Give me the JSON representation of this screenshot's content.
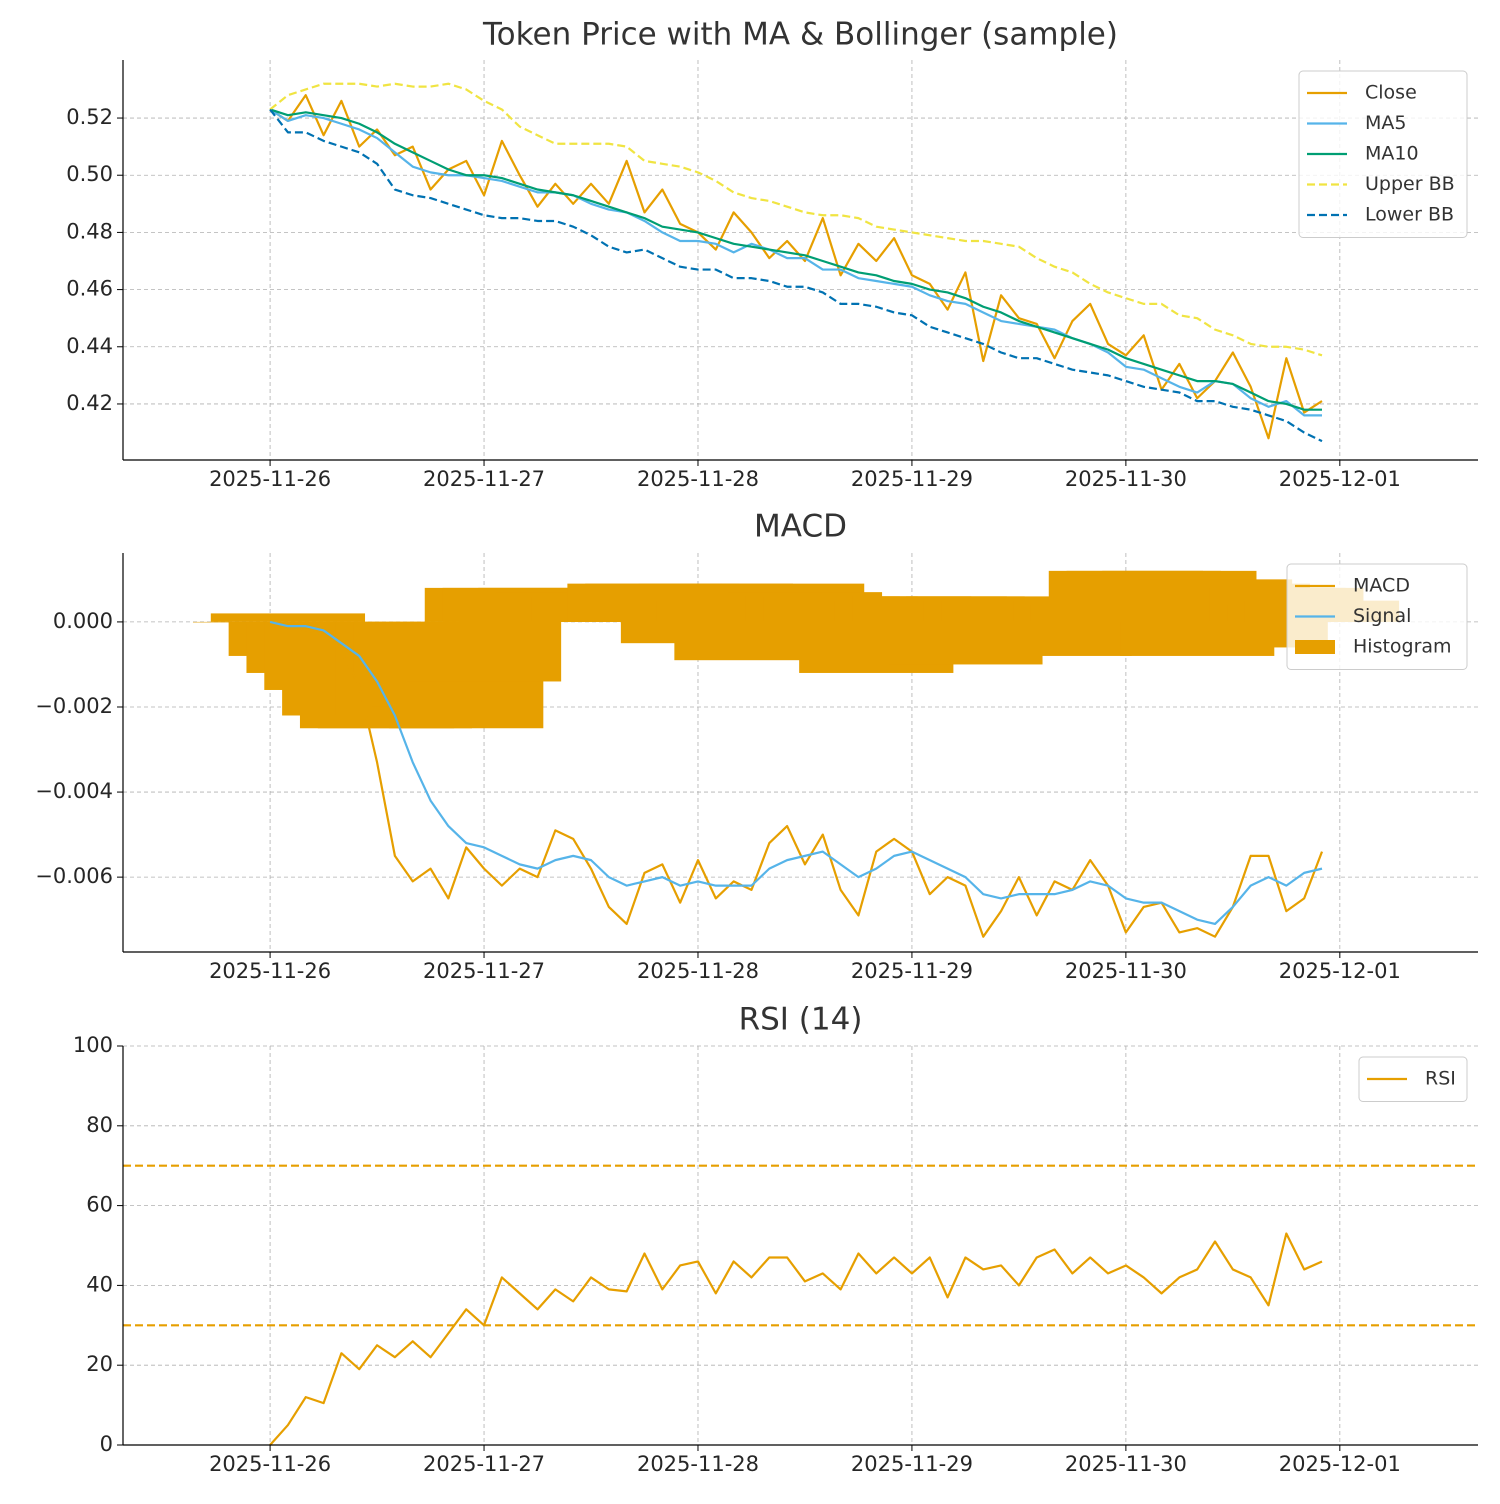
{
  "chart_data": [
    {
      "type": "line",
      "title": "Token Price with MA & Bollinger (sample)",
      "x": [
        0,
        2,
        4,
        6,
        8,
        10,
        12,
        14,
        16,
        18,
        20,
        22,
        24,
        26,
        28,
        30,
        32,
        34,
        36,
        38,
        40,
        42,
        44,
        46,
        48,
        50,
        52,
        54,
        56,
        58,
        60,
        62,
        64,
        66,
        68,
        70,
        72,
        74,
        76,
        78,
        80,
        82,
        84,
        86,
        88,
        90,
        92,
        94,
        96,
        98,
        100,
        102,
        104,
        106,
        108,
        110,
        112,
        114,
        116,
        118
      ],
      "xlim": [
        -16.5,
        135.5
      ],
      "xticks": [
        {
          "value": 0,
          "label": "2025-11-26"
        },
        {
          "value": 24,
          "label": "2025-11-27"
        },
        {
          "value": 48,
          "label": "2025-11-28"
        },
        {
          "value": 72,
          "label": "2025-11-29"
        },
        {
          "value": 96,
          "label": "2025-11-30"
        },
        {
          "value": 120,
          "label": "2025-12-01"
        }
      ],
      "ylim": [
        0.4004,
        0.5403
      ],
      "yticks": [
        0.42,
        0.44,
        0.46,
        0.48,
        {
          "value": 0.5,
          "label": "0.50"
        },
        0.52
      ],
      "grid": true,
      "legend": "upper right",
      "series": [
        {
          "name": "Close",
          "color": "#E69F00",
          "linestyle": "solid",
          "values": [
            0.523,
            0.519,
            0.528,
            0.514,
            0.526,
            0.51,
            0.516,
            0.507,
            0.51,
            0.495,
            0.502,
            0.505,
            0.493,
            0.512,
            0.5,
            0.489,
            0.497,
            0.49,
            0.497,
            0.49,
            0.505,
            0.487,
            0.495,
            0.483,
            0.48,
            0.474,
            0.487,
            0.48,
            0.471,
            0.477,
            0.47,
            0.485,
            0.465,
            0.476,
            0.47,
            0.478,
            0.465,
            0.462,
            0.453,
            0.466,
            0.435,
            0.458,
            0.45,
            0.448,
            0.436,
            0.449,
            0.455,
            0.441,
            0.437,
            0.444,
            0.425,
            0.434,
            0.422,
            0.428,
            0.438,
            0.426,
            0.408,
            0.436,
            0.417,
            0.421
          ]
        },
        {
          "name": "MA5",
          "color": "#56B4E9",
          "linestyle": "solid",
          "values": [
            0.523,
            0.519,
            0.521,
            0.52,
            0.518,
            0.516,
            0.513,
            0.508,
            0.503,
            0.501,
            0.5,
            0.5,
            0.499,
            0.498,
            0.496,
            0.494,
            0.494,
            0.493,
            0.49,
            0.488,
            0.487,
            0.484,
            0.48,
            0.477,
            0.477,
            0.476,
            0.473,
            0.476,
            0.474,
            0.471,
            0.471,
            0.467,
            0.467,
            0.464,
            0.463,
            0.462,
            0.461,
            0.458,
            0.456,
            0.455,
            0.452,
            0.449,
            0.448,
            0.447,
            0.446,
            0.443,
            0.441,
            0.438,
            0.433,
            0.432,
            0.429,
            0.426,
            0.424,
            0.428,
            0.427,
            0.422,
            0.419,
            0.421,
            0.416,
            0.416
          ]
        },
        {
          "name": "MA10",
          "color": "#009E73",
          "linestyle": "solid",
          "values": [
            0.523,
            0.521,
            0.522,
            0.521,
            0.52,
            0.518,
            0.515,
            0.511,
            0.508,
            0.505,
            0.502,
            0.5,
            0.5,
            0.499,
            0.497,
            0.495,
            0.494,
            0.493,
            0.491,
            0.489,
            0.487,
            0.485,
            0.482,
            0.481,
            0.48,
            0.478,
            0.476,
            0.475,
            0.474,
            0.473,
            0.472,
            0.47,
            0.468,
            0.466,
            0.465,
            0.463,
            0.462,
            0.46,
            0.459,
            0.457,
            0.454,
            0.452,
            0.449,
            0.447,
            0.445,
            0.443,
            0.441,
            0.439,
            0.436,
            0.434,
            0.432,
            0.43,
            0.428,
            0.428,
            0.427,
            0.424,
            0.421,
            0.42,
            0.418,
            0.418
          ]
        },
        {
          "name": "Upper BB",
          "color": "#F0E442",
          "linestyle": "dashed",
          "values": [
            0.523,
            0.528,
            0.53,
            0.532,
            0.532,
            0.532,
            0.531,
            0.532,
            0.531,
            0.531,
            0.532,
            0.53,
            0.526,
            0.523,
            0.517,
            0.514,
            0.511,
            0.511,
            0.511,
            0.511,
            0.51,
            0.505,
            0.504,
            0.503,
            0.501,
            0.498,
            0.494,
            0.492,
            0.491,
            0.489,
            0.487,
            0.486,
            0.486,
            0.485,
            0.482,
            0.481,
            0.48,
            0.479,
            0.478,
            0.477,
            0.477,
            0.476,
            0.475,
            0.471,
            0.468,
            0.466,
            0.462,
            0.459,
            0.457,
            0.455,
            0.455,
            0.451,
            0.45,
            0.446,
            0.444,
            0.441,
            0.44,
            0.44,
            0.439,
            0.437
          ]
        },
        {
          "name": "Lower BB",
          "color": "#0072B2",
          "linestyle": "dashed",
          "values": [
            0.523,
            0.515,
            0.515,
            0.512,
            0.51,
            0.508,
            0.504,
            0.495,
            0.493,
            0.492,
            0.49,
            0.488,
            0.486,
            0.485,
            0.485,
            0.484,
            0.484,
            0.482,
            0.479,
            0.475,
            0.473,
            0.474,
            0.471,
            0.468,
            0.467,
            0.467,
            0.464,
            0.464,
            0.463,
            0.461,
            0.461,
            0.459,
            0.455,
            0.455,
            0.454,
            0.452,
            0.451,
            0.447,
            0.445,
            0.443,
            0.441,
            0.438,
            0.436,
            0.436,
            0.434,
            0.432,
            0.431,
            0.43,
            0.428,
            0.426,
            0.425,
            0.424,
            0.421,
            0.421,
            0.419,
            0.418,
            0.416,
            0.414,
            0.41,
            0.407
          ]
        }
      ]
    },
    {
      "type": "line",
      "title": "MACD",
      "x": [
        0,
        2,
        4,
        6,
        8,
        10,
        12,
        14,
        16,
        18,
        20,
        22,
        24,
        26,
        28,
        30,
        32,
        34,
        36,
        38,
        40,
        42,
        44,
        46,
        48,
        50,
        52,
        54,
        56,
        58,
        60,
        62,
        64,
        66,
        68,
        70,
        72,
        74,
        76,
        78,
        80,
        82,
        84,
        86,
        88,
        90,
        92,
        94,
        96,
        98,
        100,
        102,
        104,
        106,
        108,
        110,
        112,
        114,
        116,
        118
      ],
      "xlim": [
        -16.5,
        135.5
      ],
      "xticks": [
        {
          "value": 0,
          "label": "2025-11-26"
        },
        {
          "value": 24,
          "label": "2025-11-27"
        },
        {
          "value": 48,
          "label": "2025-11-28"
        },
        {
          "value": 72,
          "label": "2025-11-29"
        },
        {
          "value": 96,
          "label": "2025-11-30"
        },
        {
          "value": 120,
          "label": "2025-12-01"
        }
      ],
      "ylim": [
        -0.00776,
        0.00162
      ],
      "yticks": [
        {
          "value": -0.006,
          "label": "−0.006"
        },
        {
          "value": -0.004,
          "label": "−0.004"
        },
        {
          "value": -0.002,
          "label": "−0.002"
        },
        {
          "value": 0,
          "label": "0.000"
        }
      ],
      "grid": true,
      "legend": "upper right",
      "series": [
        {
          "name": "MACD",
          "color": "#E69F00",
          "linestyle": "solid",
          "values": [
            0,
            -0.0001,
            -0.0002,
            -0.0003,
            -0.0007,
            -0.0015,
            -0.0033,
            -0.0055,
            -0.0061,
            -0.0058,
            -0.0065,
            -0.0053,
            -0.0058,
            -0.0062,
            -0.0058,
            -0.006,
            -0.0049,
            -0.0051,
            -0.0058,
            -0.0067,
            -0.0071,
            -0.0059,
            -0.0057,
            -0.0066,
            -0.0056,
            -0.0065,
            -0.0061,
            -0.0063,
            -0.0052,
            -0.0048,
            -0.0057,
            -0.005,
            -0.0063,
            -0.0069,
            -0.0054,
            -0.0051,
            -0.0054,
            -0.0064,
            -0.006,
            -0.0062,
            -0.0074,
            -0.0068,
            -0.006,
            -0.0069,
            -0.0061,
            -0.0063,
            -0.0056,
            -0.0062,
            -0.0073,
            -0.0067,
            -0.0066,
            -0.0073,
            -0.0072,
            -0.0074,
            -0.0067,
            -0.0055,
            -0.0055,
            -0.0068,
            -0.0065,
            -0.0054
          ]
        },
        {
          "name": "Signal",
          "color": "#56B4E9",
          "linestyle": "solid",
          "values": [
            0,
            -0.0001,
            -0.0001,
            -0.0002,
            -0.0005,
            -0.0008,
            -0.0014,
            -0.0022,
            -0.0033,
            -0.0042,
            -0.0048,
            -0.0052,
            -0.0053,
            -0.0055,
            -0.0057,
            -0.0058,
            -0.0056,
            -0.0055,
            -0.0056,
            -0.006,
            -0.0062,
            -0.0061,
            -0.006,
            -0.0062,
            -0.0061,
            -0.0062,
            -0.0062,
            -0.0062,
            -0.0058,
            -0.0056,
            -0.0055,
            -0.0054,
            -0.0057,
            -0.006,
            -0.0058,
            -0.0055,
            -0.0054,
            -0.0056,
            -0.0058,
            -0.006,
            -0.0064,
            -0.0065,
            -0.0064,
            -0.0064,
            -0.0064,
            -0.0063,
            -0.0061,
            -0.0062,
            -0.0065,
            -0.0066,
            -0.0066,
            -0.0068,
            -0.007,
            -0.0071,
            -0.0067,
            -0.0062,
            -0.006,
            -0.0062,
            -0.0059,
            -0.0058
          ]
        },
        {
          "name": "Histogram",
          "color": "#E69F00",
          "kind": "bar",
          "values": [
            0,
            0.0002,
            -0.0008,
            -0.0012,
            -0.0016,
            -0.0022,
            -0.0025,
            -0.0025,
            -0.0022,
            -0.0013,
            -0.002,
            -0.0025,
            -0.0014,
            0.0008,
            0.0008,
            0.0006,
            0.0008,
            0.0007,
            0.0003,
            0.0006,
            0.0005,
            0.0009,
            0.0009,
            0.0006,
            -0.0005,
            0.0009,
            0.0005,
            -0.0009,
            0.0008,
            0.0009,
            0.0007,
            0.0006,
            0.0006,
            0.0005,
            -0.0012,
            0.0006,
            0.0005,
            0.0006,
            0.0006,
            -0.001,
            0.0006,
            0.0005,
            0.0005,
            0.0004,
            -0.0008,
            0.0005,
            0.0005,
            0.0004,
            0.0012,
            0.0012,
            0.0011,
            0.0012,
            -0.0008,
            0.001,
            0.0009,
            -0.0006,
            0.0008,
            0.0008,
            0.0004,
            0.0005
          ]
        }
      ]
    },
    {
      "type": "line",
      "title": "RSI (14)",
      "x": [
        0,
        2,
        4,
        6,
        8,
        10,
        12,
        14,
        16,
        18,
        20,
        22,
        24,
        26,
        28,
        30,
        32,
        34,
        36,
        38,
        40,
        42,
        44,
        46,
        48,
        50,
        52,
        54,
        56,
        58,
        60,
        62,
        64,
        66,
        68,
        70,
        72,
        74,
        76,
        78,
        80,
        82,
        84,
        86,
        88,
        90,
        92,
        94,
        96,
        98,
        100,
        102,
        104,
        106,
        108,
        110,
        112,
        114,
        116,
        118
      ],
      "xlim": [
        -16.5,
        135.5
      ],
      "xticks": [
        {
          "value": 0,
          "label": "2025-11-26"
        },
        {
          "value": 24,
          "label": "2025-11-27"
        },
        {
          "value": 48,
          "label": "2025-11-28"
        },
        {
          "value": 72,
          "label": "2025-11-29"
        },
        {
          "value": 96,
          "label": "2025-11-30"
        },
        {
          "value": 120,
          "label": "2025-12-01"
        }
      ],
      "ylim": [
        0,
        100
      ],
      "yticks": [
        0,
        20,
        40,
        60,
        80,
        100
      ],
      "grid": true,
      "legend": "upper right",
      "hlines": [
        70,
        30
      ],
      "hline_color": "#E69F00",
      "series": [
        {
          "name": "RSI",
          "color": "#E69F00",
          "linestyle": "solid",
          "values": [
            0,
            5,
            12,
            10.5,
            23,
            19,
            25,
            22,
            26,
            22,
            28,
            34,
            30,
            42,
            38,
            34,
            39,
            36,
            42,
            39,
            38.5,
            48,
            39,
            45,
            46,
            38,
            46,
            42,
            47,
            47,
            41,
            43,
            39,
            48,
            43,
            47,
            43,
            47,
            37,
            47,
            44,
            45,
            40,
            47,
            49,
            43,
            47,
            43,
            45,
            42,
            38,
            42,
            44,
            51,
            44,
            42,
            35,
            53,
            44,
            46
          ]
        }
      ]
    }
  ]
}
